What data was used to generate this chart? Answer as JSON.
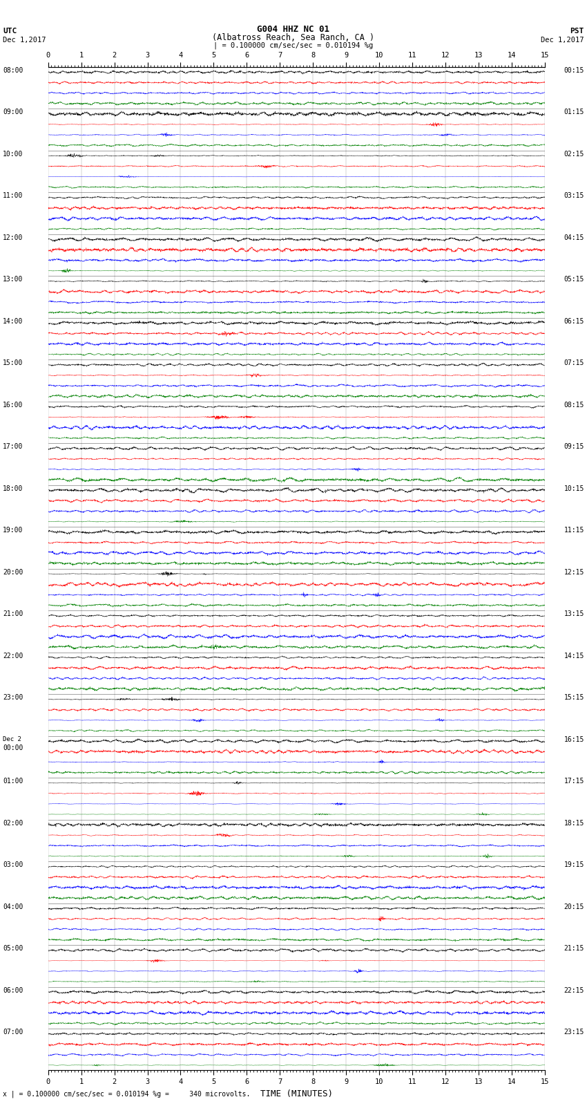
{
  "title_line1": "G004 HHZ NC 01",
  "title_line2": "(Albatross Reach, Sea Ranch, CA )",
  "scale_label": "= 0.100000 cm/sec/sec = 0.010194 %g",
  "bottom_label": "x | = 0.100000 cm/sec/sec = 0.010194 %g =     340 microvolts.",
  "utc_label": "UTC",
  "pst_label": "PST",
  "date_left": "Dec 1,2017",
  "date_right": "Dec 1,2017",
  "xlabel": "TIME (MINUTES)",
  "xmin": 0,
  "xmax": 15,
  "xticks": [
    0,
    1,
    2,
    3,
    4,
    5,
    6,
    7,
    8,
    9,
    10,
    11,
    12,
    13,
    14,
    15
  ],
  "num_traces": 96,
  "traces_per_hour": 4,
  "trace_colors_cycle": [
    "black",
    "red",
    "blue",
    "green"
  ],
  "bg_color": "white",
  "fig_width": 8.5,
  "fig_height": 16.13,
  "left_labels_utc": [
    "08:00",
    "09:00",
    "10:00",
    "11:00",
    "12:00",
    "13:00",
    "14:00",
    "15:00",
    "16:00",
    "17:00",
    "18:00",
    "19:00",
    "20:00",
    "21:00",
    "22:00",
    "23:00",
    "Dec 2\n00:00",
    "01:00",
    "02:00",
    "03:00",
    "04:00",
    "05:00",
    "06:00",
    "07:00"
  ],
  "right_labels_pst": [
    "00:15",
    "01:15",
    "02:15",
    "03:15",
    "04:15",
    "05:15",
    "06:15",
    "07:15",
    "08:15",
    "09:15",
    "10:15",
    "11:15",
    "12:15",
    "13:15",
    "14:15",
    "15:15",
    "16:15",
    "17:15",
    "18:15",
    "19:15",
    "20:15",
    "21:15",
    "22:15",
    "23:15"
  ],
  "num_label_rows": 24,
  "dpi": 100
}
